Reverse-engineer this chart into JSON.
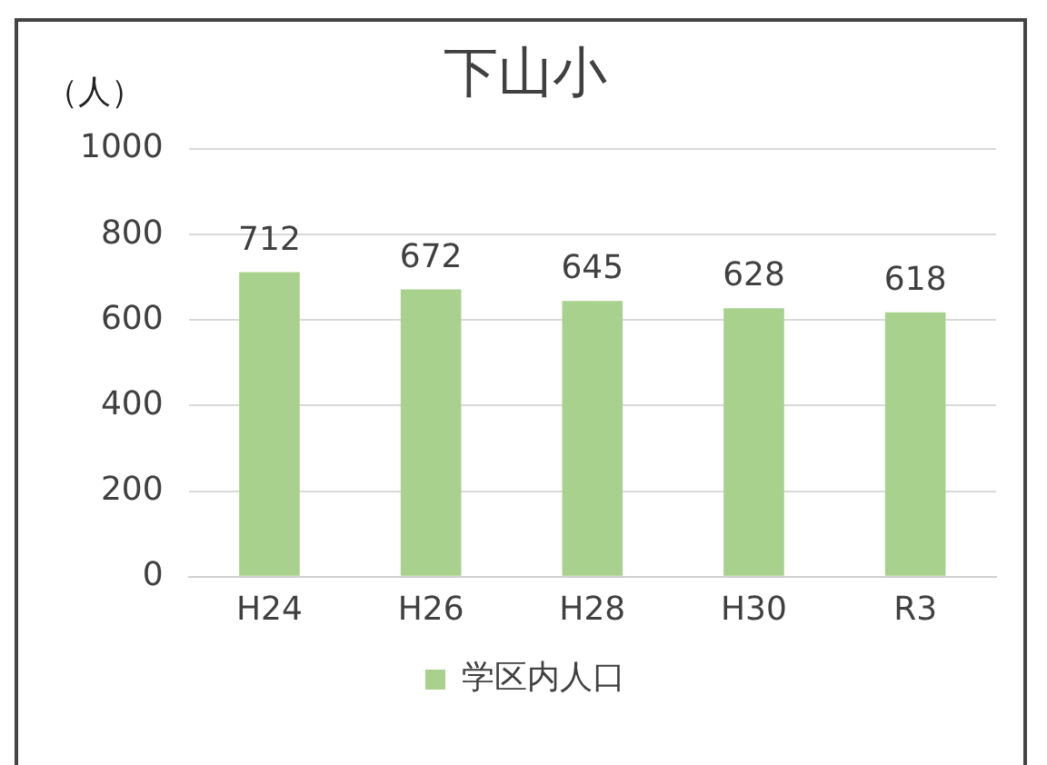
{
  "chart_data": {
    "type": "bar",
    "title": "下山小",
    "ylabel": "（人）",
    "categories": [
      "H24",
      "H26",
      "H28",
      "H30",
      "R3"
    ],
    "series": [
      {
        "name": "学区内人口",
        "color": "#a9d18e",
        "values": [
          712,
          672,
          645,
          628,
          618
        ]
      }
    ],
    "ylim": [
      0,
      1000
    ],
    "yticks": [
      0,
      200,
      400,
      600,
      800,
      1000
    ],
    "grid": "y",
    "legend": "bottom",
    "data_labels": true
  }
}
